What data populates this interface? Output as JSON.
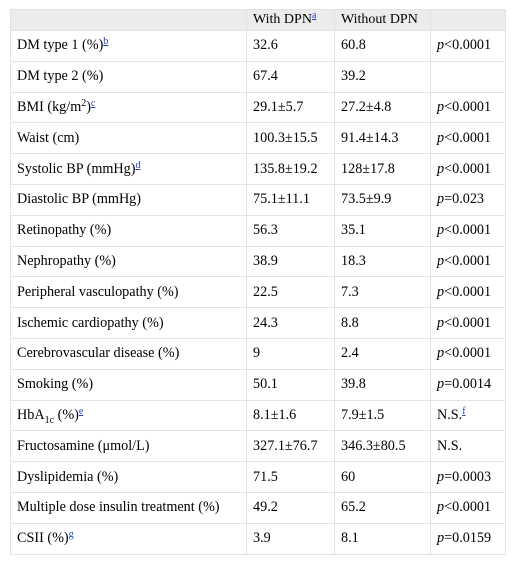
{
  "table": {
    "headers": [
      {
        "text": "",
        "fn": ""
      },
      {
        "text": "With DPN",
        "fn": "a"
      },
      {
        "text": "Without DPN",
        "fn": ""
      },
      {
        "text": "",
        "fn": ""
      }
    ],
    "rows": [
      {
        "label": "DM type 1 (%)",
        "sub": "",
        "label_tail": "",
        "fn": "b",
        "with": "32.6",
        "without": "60.8",
        "p_prefix": "p",
        "p_value": "<0.0001",
        "p_fn": ""
      },
      {
        "label": "DM type 2 (%)",
        "sub": "",
        "label_tail": "",
        "fn": "",
        "with": "67.4",
        "without": "39.2",
        "p_prefix": "",
        "p_value": "",
        "p_fn": ""
      },
      {
        "label": "BMI (kg/m",
        "sup": "2",
        "label_tail": ")",
        "fn": "c",
        "with": "29.1±5.7",
        "without": "27.2±4.8",
        "p_prefix": "p",
        "p_value": "<0.0001",
        "p_fn": ""
      },
      {
        "label": "Waist (cm)",
        "sub": "",
        "label_tail": "",
        "fn": "",
        "with": "100.3±15.5",
        "without": "91.4±14.3",
        "p_prefix": "p",
        "p_value": "<0.0001",
        "p_fn": ""
      },
      {
        "label": "Systolic BP (mmHg)",
        "sub": "",
        "label_tail": "",
        "fn": "d",
        "with": "135.8±19.2",
        "without": "128±17.8",
        "p_prefix": "p",
        "p_value": "<0.0001",
        "p_fn": ""
      },
      {
        "label": "Diastolic BP (mmHg)",
        "sub": "",
        "label_tail": "",
        "fn": "",
        "with": "75.1±11.1",
        "without": "73.5±9.9",
        "p_prefix": "p",
        "p_value": "=0.023",
        "p_fn": ""
      },
      {
        "label": "Retinopathy (%)",
        "sub": "",
        "label_tail": "",
        "fn": "",
        "with": "56.3",
        "without": "35.1",
        "p_prefix": "p",
        "p_value": "<0.0001",
        "p_fn": ""
      },
      {
        "label": "Nephropathy (%)",
        "sub": "",
        "label_tail": "",
        "fn": "",
        "with": "38.9",
        "without": "18.3",
        "p_prefix": "p",
        "p_value": "<0.0001",
        "p_fn": ""
      },
      {
        "label": "Peripheral vasculopathy (%)",
        "sub": "",
        "label_tail": "",
        "fn": "",
        "with": "22.5",
        "without": "7.3",
        "p_prefix": "p",
        "p_value": "<0.0001",
        "p_fn": ""
      },
      {
        "label": "Ischemic cardiopathy (%)",
        "sub": "",
        "label_tail": "",
        "fn": "",
        "with": "24.3",
        "without": "8.8",
        "p_prefix": "p",
        "p_value": "<0.0001",
        "p_fn": ""
      },
      {
        "label": "Cerebrovascular disease (%)",
        "sub": "",
        "label_tail": "",
        "fn": "",
        "with": "9",
        "without": "2.4",
        "p_prefix": "p",
        "p_value": "<0.0001",
        "p_fn": ""
      },
      {
        "label": "Smoking (%)",
        "sub": "",
        "label_tail": "",
        "fn": "",
        "with": "50.1",
        "without": "39.8",
        "p_prefix": "p",
        "p_value": "=0.0014",
        "p_fn": ""
      },
      {
        "label": "HbA",
        "sub": "1c",
        "label_tail": " (%)",
        "fn": "e",
        "with": "8.1±1.6",
        "without": "7.9±1.5",
        "p_prefix": "",
        "p_value": "N.S.",
        "p_fn": "f"
      },
      {
        "label": "Fructosamine (μmol/L)",
        "sub": "",
        "label_tail": "",
        "fn": "",
        "with": "327.1±76.7",
        "without": "346.3±80.5",
        "p_prefix": "",
        "p_value": "N.S.",
        "p_fn": ""
      },
      {
        "label": "Dyslipidemia (%)",
        "sub": "",
        "label_tail": "",
        "fn": "",
        "with": "71.5",
        "without": "60",
        "p_prefix": "p",
        "p_value": "=0.0003",
        "p_fn": ""
      },
      {
        "label": "Multiple dose insulin treatment (%)",
        "sub": "",
        "label_tail": "",
        "fn": "",
        "with": "49.2",
        "without": "65.2",
        "p_prefix": "p",
        "p_value": "<0.0001",
        "p_fn": ""
      },
      {
        "label": "CSII (%)",
        "sub": "",
        "label_tail": "",
        "fn": "g",
        "with": "3.9",
        "without": "8.1",
        "p_prefix": "p",
        "p_value": "=0.0159",
        "p_fn": ""
      }
    ]
  }
}
